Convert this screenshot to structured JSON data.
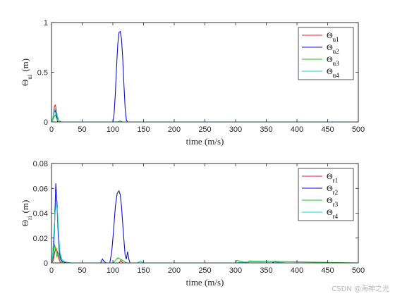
{
  "watermark": "CSDN @海神之光",
  "chart_data": [
    {
      "type": "line",
      "xlabel": "time (m/s)",
      "ylabel_main": "Θ",
      "ylabel_sub": "ui",
      "ylabel_unit": "(m)",
      "xlim": [
        0,
        500
      ],
      "ylim": [
        0,
        1
      ],
      "xticks": [
        0,
        50,
        100,
        150,
        200,
        250,
        300,
        350,
        400,
        450,
        500
      ],
      "yticks": [
        0,
        0.5,
        1
      ],
      "ytick_labels": [
        "0",
        "0.5",
        "1"
      ],
      "grid": false,
      "legend_position": "top-right",
      "series": [
        {
          "name_main": "Θ",
          "name_sub": "u1",
          "color": "#d62728",
          "x": [
            0,
            2,
            4,
            5,
            6,
            7,
            8,
            9,
            10,
            12,
            14,
            16,
            500
          ],
          "y": [
            0,
            0.02,
            0.12,
            0.16,
            0.17,
            0.15,
            0.11,
            0.07,
            0.04,
            0.015,
            0.005,
            0,
            0
          ]
        },
        {
          "name_main": "Θ",
          "name_sub": "u2",
          "color": "#1010c8",
          "x": [
            0,
            2,
            4,
            6,
            8,
            10,
            100,
            102,
            104,
            106,
            108,
            110,
            112,
            114,
            116,
            118,
            120,
            122,
            124,
            500
          ],
          "y": [
            0,
            0.03,
            0.09,
            0.12,
            0.07,
            0,
            0,
            0.08,
            0.28,
            0.55,
            0.78,
            0.9,
            0.91,
            0.84,
            0.65,
            0.38,
            0.14,
            0.02,
            0,
            0
          ]
        },
        {
          "name_main": "Θ",
          "name_sub": "u3",
          "color": "#22c522",
          "x": [
            0,
            2,
            4,
            6,
            8,
            10,
            12,
            108,
            112,
            116,
            500
          ],
          "y": [
            0,
            0.02,
            0.05,
            0.07,
            0.04,
            0.01,
            0,
            0,
            0.01,
            0,
            0
          ]
        },
        {
          "name_main": "Θ",
          "name_sub": "u4",
          "color": "#1fd3d3",
          "x": [
            0,
            2,
            4,
            6,
            8,
            10,
            12,
            14,
            500
          ],
          "y": [
            0,
            0.04,
            0.1,
            0.13,
            0.1,
            0.05,
            0.02,
            0,
            0
          ]
        }
      ]
    },
    {
      "type": "line",
      "xlabel": "time (m/s)",
      "ylabel_main": "Θ",
      "ylabel_sub": "ri",
      "ylabel_unit": "(m)",
      "xlim": [
        0,
        500
      ],
      "ylim": [
        0,
        0.08
      ],
      "xticks": [
        0,
        50,
        100,
        150,
        200,
        250,
        300,
        350,
        400,
        450,
        500
      ],
      "yticks": [
        0,
        0.02,
        0.04,
        0.06,
        0.08
      ],
      "ytick_labels": [
        "0",
        "0.02",
        "0.04",
        "0.06",
        "0.08"
      ],
      "grid": false,
      "legend_position": "top-right",
      "series": [
        {
          "name_main": "Θ",
          "name_sub": "r1",
          "color": "#d62728",
          "x": [
            0,
            3,
            5,
            7,
            9,
            11,
            13,
            15,
            110,
            113,
            116,
            500
          ],
          "y": [
            0,
            0.002,
            0.008,
            0.012,
            0.01,
            0.005,
            0.002,
            0,
            0,
            0.002,
            0,
            0
          ]
        },
        {
          "name_main": "Θ",
          "name_sub": "r2",
          "color": "#1010c8",
          "x": [
            0,
            3,
            5,
            7,
            9,
            11,
            13,
            15,
            18,
            22,
            26,
            80,
            83,
            86,
            89,
            95,
            98,
            101,
            104,
            107,
            110,
            112,
            114,
            117,
            120,
            122,
            124,
            126,
            128,
            360,
            365,
            372,
            500
          ],
          "y": [
            0,
            0.005,
            0.03,
            0.064,
            0.048,
            0.022,
            0.008,
            0.003,
            0.001,
            0.0005,
            0,
            0,
            0.003,
            0.001,
            0,
            0,
            0.008,
            0.025,
            0.045,
            0.056,
            0.058,
            0.055,
            0.046,
            0.025,
            0.006,
            0.003,
            0.009,
            0.003,
            0,
            0,
            0.0015,
            0,
            0
          ]
        },
        {
          "name_main": "Θ",
          "name_sub": "r3",
          "color": "#22c522",
          "x": [
            0,
            3,
            5,
            7,
            9,
            11,
            14,
            18,
            100,
            104,
            108,
            112,
            116,
            122,
            150,
            300,
            302,
            320,
            322,
            500
          ],
          "y": [
            0,
            0.006,
            0.015,
            0.01,
            0.005,
            0.008,
            0.003,
            0,
            0,
            0.002,
            0.004,
            0.003,
            0.002,
            0,
            0,
            0,
            0.002,
            0,
            0.0015,
            0
          ]
        },
        {
          "name_main": "Θ",
          "name_sub": "r4",
          "color": "#1fd3d3",
          "x": [
            0,
            2,
            4,
            6,
            8,
            10,
            12,
            14,
            17,
            21,
            26,
            32,
            140,
            145,
            150,
            300,
            320,
            360,
            380,
            500
          ],
          "y": [
            0,
            0.008,
            0.025,
            0.04,
            0.048,
            0.04,
            0.02,
            0.008,
            0.003,
            0.001,
            0.0005,
            0,
            0,
            0.0015,
            0,
            0,
            0.001,
            0.001,
            0,
            0
          ]
        }
      ]
    }
  ]
}
